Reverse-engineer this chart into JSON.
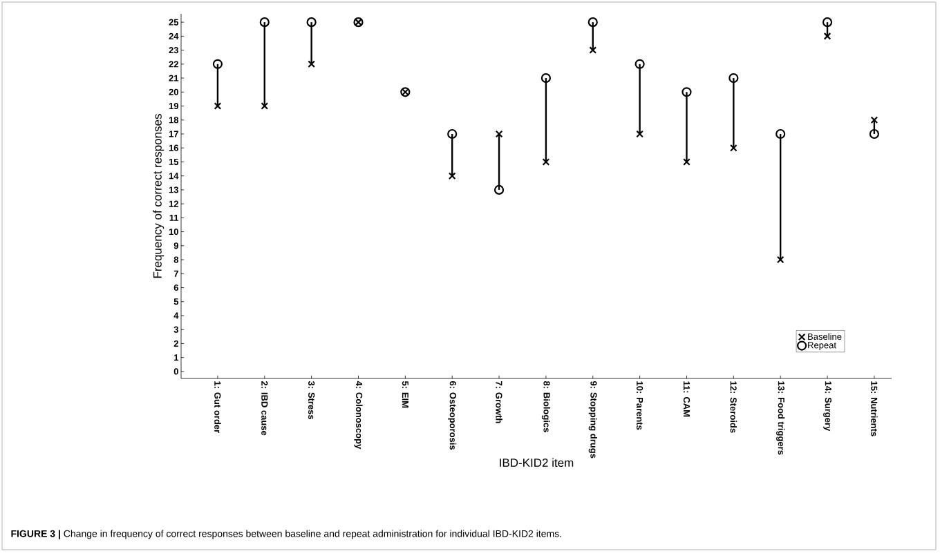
{
  "chart_data": {
    "type": "scatter",
    "xlabel": "IBD-KID2 item",
    "ylabel": "Frequency of correct responses",
    "categories": [
      "1: Gut order",
      "2: IBD cause",
      "3: Stress",
      "4: Colonoscopy",
      "5: EIM",
      "6: Osteoporosis",
      "7: Growth",
      "8: Biologics",
      "9: Stopping drugs",
      "10: Parents",
      "11: CAM",
      "12: Steroids",
      "13: Food triggers",
      "14: Surgery",
      "15: Nutrients"
    ],
    "series": [
      {
        "name": "Baseline",
        "color": "#000000",
        "marker": "cross",
        "values": [
          19,
          19,
          22,
          25,
          20,
          14,
          17,
          15,
          23,
          17,
          15,
          16,
          8,
          24,
          18
        ]
      },
      {
        "name": "Repeat",
        "color": "#000000",
        "marker": "circle",
        "values": [
          22,
          25,
          25,
          25,
          20,
          17,
          13,
          21,
          25,
          22,
          20,
          21,
          17,
          25,
          17
        ]
      }
    ],
    "ylim": [
      -0.5,
      25.6
    ],
    "yticks": [
      0,
      1,
      2,
      3,
      4,
      5,
      6,
      7,
      8,
      9,
      10,
      11,
      12,
      13,
      14,
      15,
      16,
      17,
      18,
      19,
      20,
      21,
      22,
      23,
      24,
      25
    ],
    "grid": false,
    "legend": "bottom right",
    "annotations": [
      "**FIGURE 3 |** Change in frequency of correct responses between baseline and repeat administration for individual IBD-KID2 items."
    ]
  }
}
